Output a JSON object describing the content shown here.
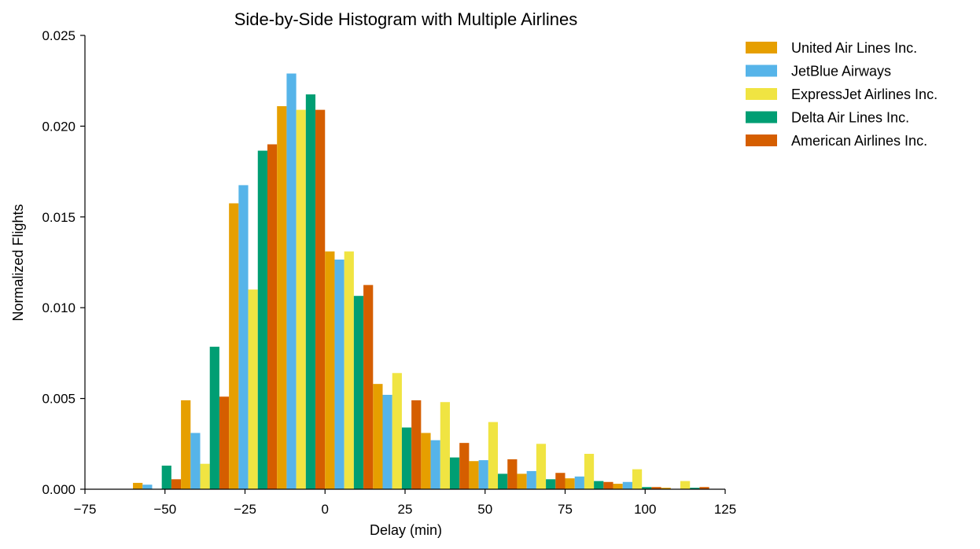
{
  "chart_data": {
    "type": "bar",
    "title": "Side-by-Side Histogram with Multiple Airlines",
    "xlabel": "Delay (min)",
    "ylabel": "Normalized Flights",
    "xlim": [
      -75,
      125
    ],
    "ylim": [
      0,
      0.025
    ],
    "xticks": [
      -75,
      -50,
      -25,
      0,
      25,
      50,
      75,
      100,
      125
    ],
    "xtick_labels": [
      "−75",
      "−50",
      "−25",
      "0",
      "25",
      "50",
      "75",
      "100",
      "125"
    ],
    "yticks": [
      0,
      0.005,
      0.01,
      0.015,
      0.02,
      0.025
    ],
    "ytick_labels": [
      "0.000",
      "0.005",
      "0.010",
      "0.015",
      "0.020",
      "0.025"
    ],
    "bin_edges": [
      -60,
      -45,
      -30,
      -15,
      0,
      15,
      30,
      45,
      60,
      75,
      90,
      105,
      120
    ],
    "grid": false,
    "legend_position": "outside-top-right",
    "series": [
      {
        "name": "United Air Lines Inc.",
        "color": "#E69F00",
        "values": [
          0.00035,
          0.0049,
          0.01575,
          0.0211,
          0.0131,
          0.0058,
          0.0031,
          0.00155,
          0.00085,
          0.0006,
          0.0003,
          8e-05
        ]
      },
      {
        "name": "JetBlue Airways",
        "color": "#56B4E9",
        "values": [
          0.00025,
          0.0031,
          0.01675,
          0.0229,
          0.01265,
          0.0052,
          0.0027,
          0.0016,
          0.001,
          0.0007,
          0.0004,
          2e-05
        ]
      },
      {
        "name": "ExpressJet Airlines Inc.",
        "color": "#F0E442",
        "values": [
          1e-05,
          0.0014,
          0.011,
          0.0209,
          0.0131,
          0.0064,
          0.0048,
          0.0037,
          0.0025,
          0.00195,
          0.0011,
          0.00045
        ]
      },
      {
        "name": "Delta Air Lines Inc.",
        "color": "#009E73",
        "values": [
          0.0013,
          0.00785,
          0.01865,
          0.02175,
          0.01065,
          0.0034,
          0.00175,
          0.00085,
          0.00055,
          0.00045,
          0.00012,
          8e-05
        ]
      },
      {
        "name": "American Airlines Inc.",
        "color": "#D55E00",
        "values": [
          0.00055,
          0.0051,
          0.019,
          0.0209,
          0.01125,
          0.0049,
          0.00255,
          0.00165,
          0.0009,
          0.0004,
          0.00012,
          0.00012
        ]
      }
    ]
  }
}
